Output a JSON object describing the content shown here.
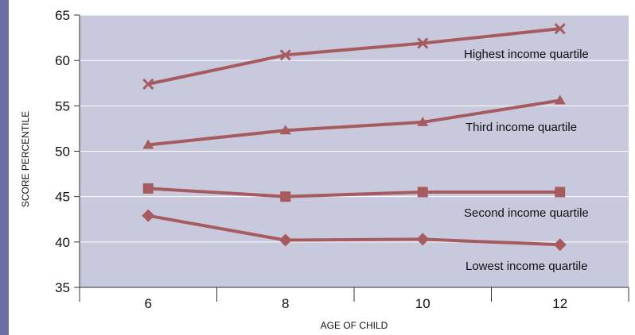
{
  "chart_data": {
    "type": "line",
    "title": "",
    "xlabel": "AGE OF CHILD",
    "ylabel": "SCORE PERCENTILE",
    "x": [
      6,
      8,
      10,
      12
    ],
    "xlim": [
      5,
      13
    ],
    "ylim": [
      35,
      65
    ],
    "yticks": [
      35,
      40,
      45,
      50,
      55,
      60,
      65
    ],
    "grid": "horizontal",
    "colors": {
      "plot_bg": "#c9c9de",
      "series": "#a65b5f",
      "gridline": "#ffffff",
      "accent_bar": "#6e6ea0"
    },
    "series": [
      {
        "name": "Highest income quartile",
        "marker": "x",
        "values": [
          57.4,
          60.6,
          61.9,
          63.5
        ]
      },
      {
        "name": "Third income quartile",
        "marker": "triangle",
        "values": [
          50.7,
          52.3,
          53.2,
          55.6
        ]
      },
      {
        "name": "Second income quartile",
        "marker": "square",
        "values": [
          45.9,
          45.0,
          45.5,
          45.5
        ]
      },
      {
        "name": "Lowest income quartile",
        "marker": "diamond",
        "values": [
          42.9,
          40.2,
          40.3,
          39.7
        ]
      }
    ]
  }
}
